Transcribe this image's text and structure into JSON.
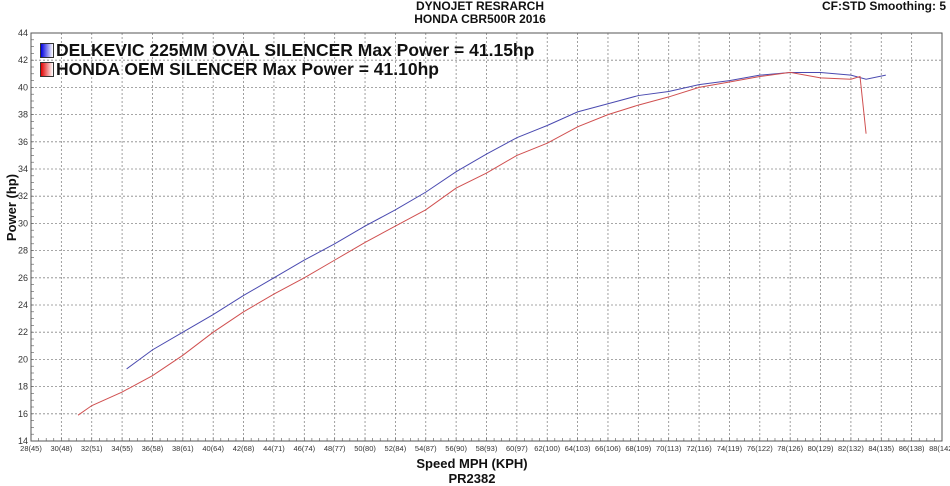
{
  "chart_data": {
    "type": "line",
    "title": "DYNOJET RESRARCH",
    "subtitle": "HONDA CBR500R 2016",
    "corner_text": "CF:STD Smoothing: 5",
    "xlabel": "Speed MPH (KPH)",
    "xlabel2": "PR2382",
    "ylabel": "Power (hp)",
    "xlim": [
      28,
      88
    ],
    "ylim": [
      14,
      44
    ],
    "grid": true,
    "legend_placement": "top-left",
    "xticks": [
      "28(45)",
      "30(48)",
      "32(51)",
      "34(55)",
      "36(58)",
      "38(61)",
      "40(64)",
      "42(68)",
      "44(71)",
      "46(74)",
      "48(77)",
      "50(80)",
      "52(84)",
      "54(87)",
      "56(90)",
      "58(93)",
      "60(97)",
      "62(100)",
      "64(103)",
      "66(106)",
      "68(109)",
      "70(113)",
      "72(116)",
      "74(119)",
      "76(122)",
      "78(126)",
      "80(129)",
      "82(132)",
      "84(135)",
      "86(138)",
      "88(142)"
    ],
    "yticks": [
      14,
      16,
      18,
      20,
      22,
      24,
      26,
      28,
      30,
      32,
      34,
      36,
      38,
      40,
      42,
      44
    ],
    "series": [
      {
        "name": "DELKEVIC 225MM OVAL SILENCER Max Power = 41.15hp",
        "color": "#4a4ab0",
        "x": [
          34.3,
          36,
          38,
          40,
          42,
          44,
          46,
          48,
          50,
          52,
          54,
          56,
          58,
          60,
          62,
          64,
          66,
          68,
          70,
          72,
          74,
          76,
          78,
          80,
          82,
          83,
          84.3
        ],
        "y": [
          19.3,
          20.7,
          22.0,
          23.3,
          24.7,
          26.0,
          27.3,
          28.5,
          29.8,
          31.0,
          32.3,
          33.8,
          35.1,
          36.3,
          37.2,
          38.2,
          38.8,
          39.4,
          39.7,
          40.2,
          40.5,
          40.9,
          41.1,
          41.1,
          40.9,
          40.6,
          40.9
        ]
      },
      {
        "name": "HONDA OEM SILENCER Max Power = 41.10hp",
        "color": "#d05050",
        "x": [
          31.1,
          32,
          34,
          36,
          38,
          40,
          42,
          44,
          46,
          48,
          50,
          52,
          54,
          56,
          58,
          60,
          62,
          64,
          66,
          68,
          70,
          72,
          74,
          76,
          78,
          80,
          82,
          82.6,
          83
        ],
        "y": [
          15.9,
          16.6,
          17.6,
          18.8,
          20.3,
          22.0,
          23.5,
          24.8,
          26.0,
          27.3,
          28.6,
          29.8,
          31.0,
          32.6,
          33.7,
          35.0,
          35.9,
          37.1,
          38.0,
          38.7,
          39.3,
          40.0,
          40.4,
          40.8,
          41.1,
          40.7,
          40.6,
          40.8,
          36.6
        ]
      }
    ]
  }
}
